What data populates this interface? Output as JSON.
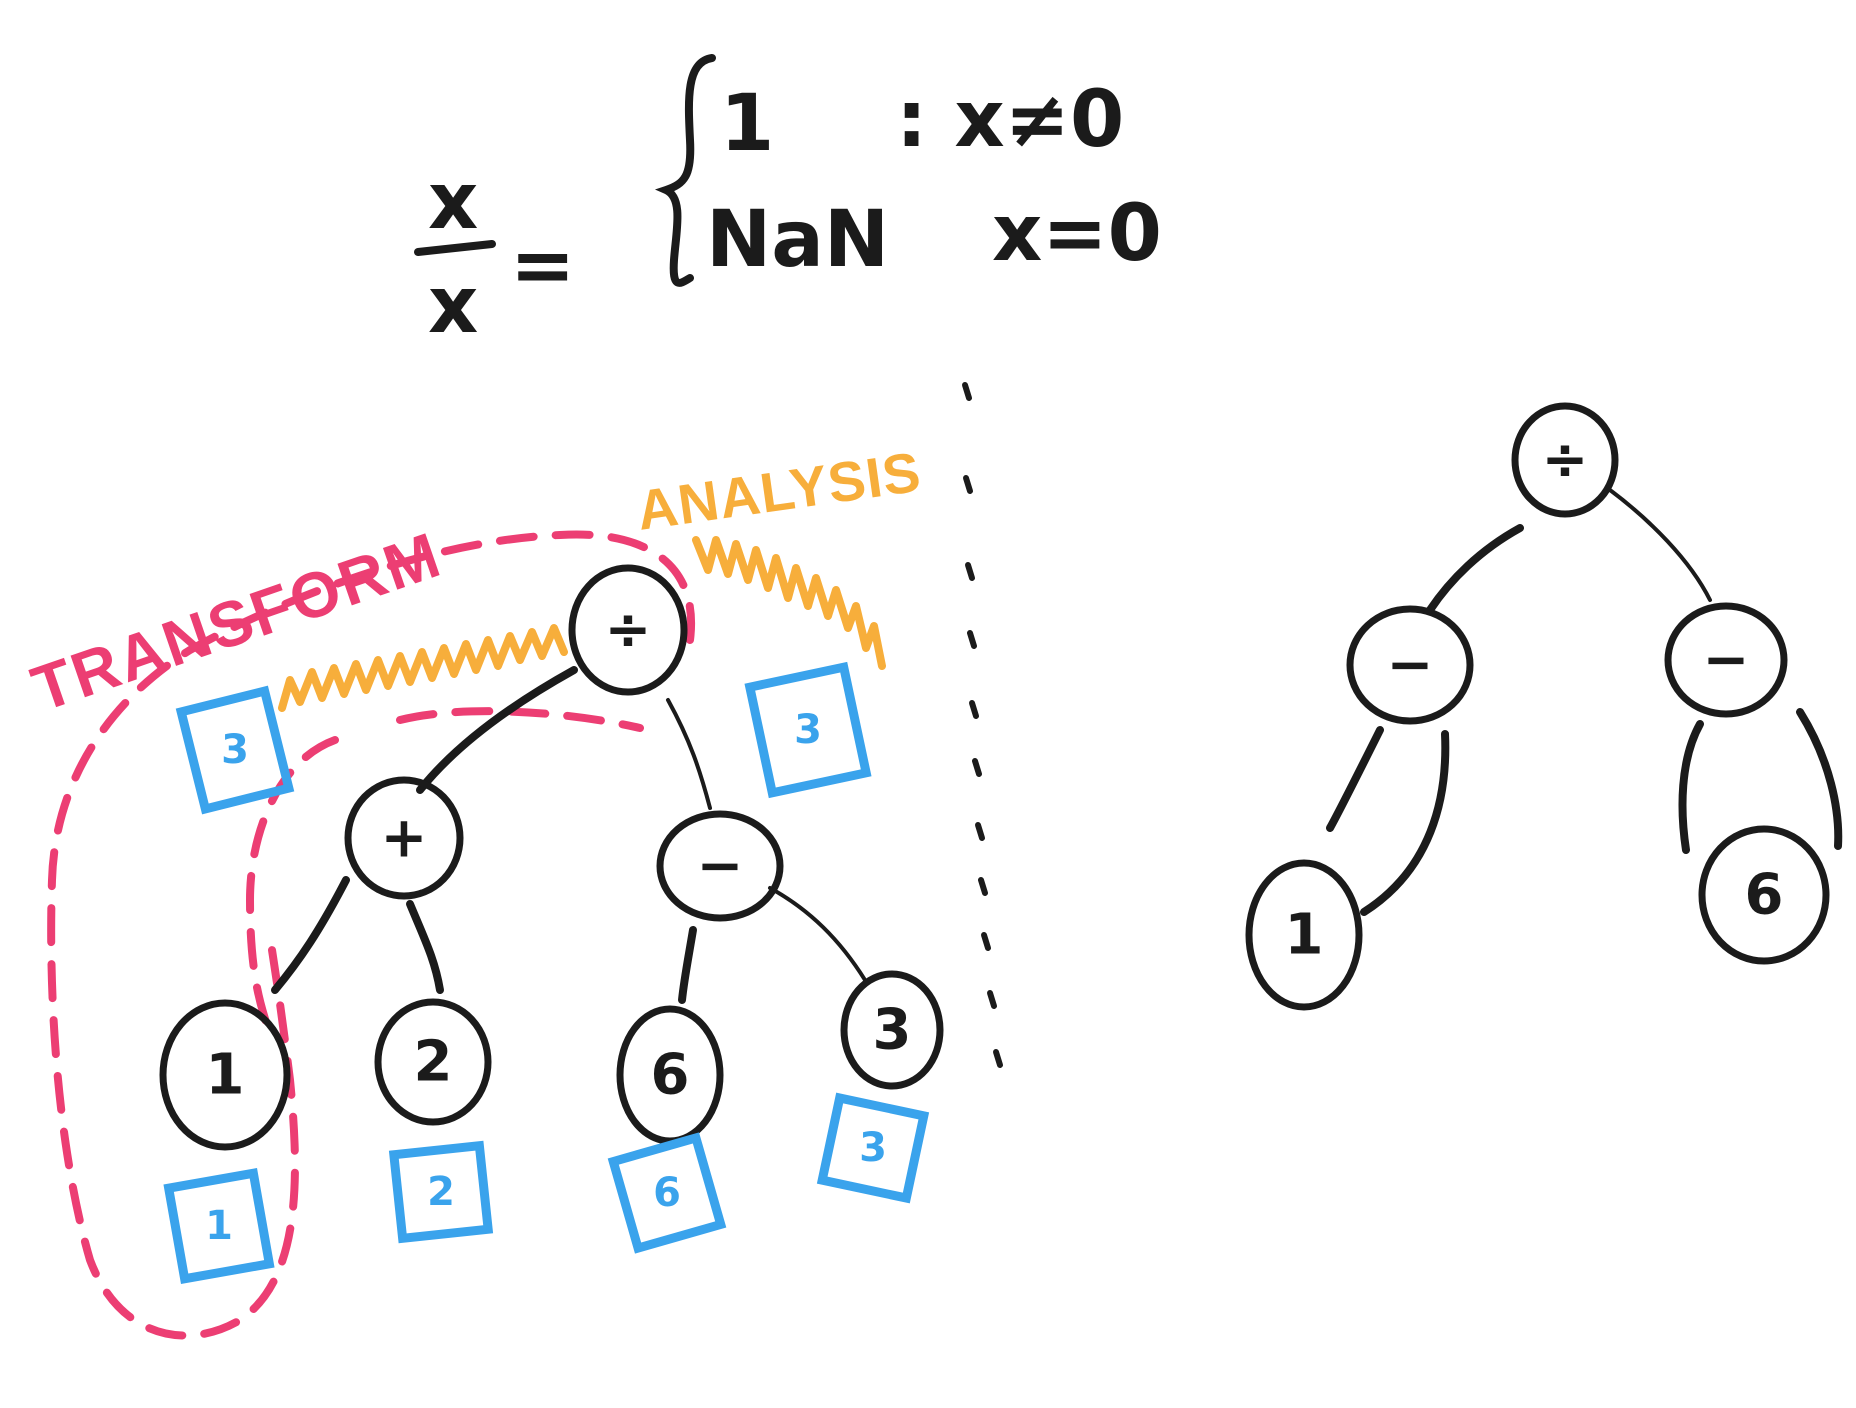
{
  "equation": {
    "numerator": "x",
    "denominator": "x",
    "equals": "=",
    "case1_value": "1",
    "case1_condition": ": x≠0",
    "case2_value": "NaN",
    "case2_condition": "x=0"
  },
  "labels": {
    "transform": "TRANSFORM",
    "analysis": "ANALYSIS"
  },
  "left_tree": {
    "nodes": {
      "root": "÷",
      "plus": "+",
      "minus": "−",
      "one": "1",
      "two": "2",
      "six": "6",
      "three": "3"
    },
    "boxes": {
      "root_left": "3",
      "root_right": "3",
      "one": "1",
      "two": "2",
      "six": "6",
      "three": "3"
    }
  },
  "right_tree": {
    "nodes": {
      "root": "÷",
      "left_minus": "−",
      "right_minus": "−",
      "one": "1",
      "six": "6"
    }
  },
  "colors": {
    "ink": "#1b1b1b",
    "transform": "#ec3e73",
    "analysis": "#f7ae3b",
    "value_box": "#3aa3ec",
    "background": "#ffffff"
  }
}
